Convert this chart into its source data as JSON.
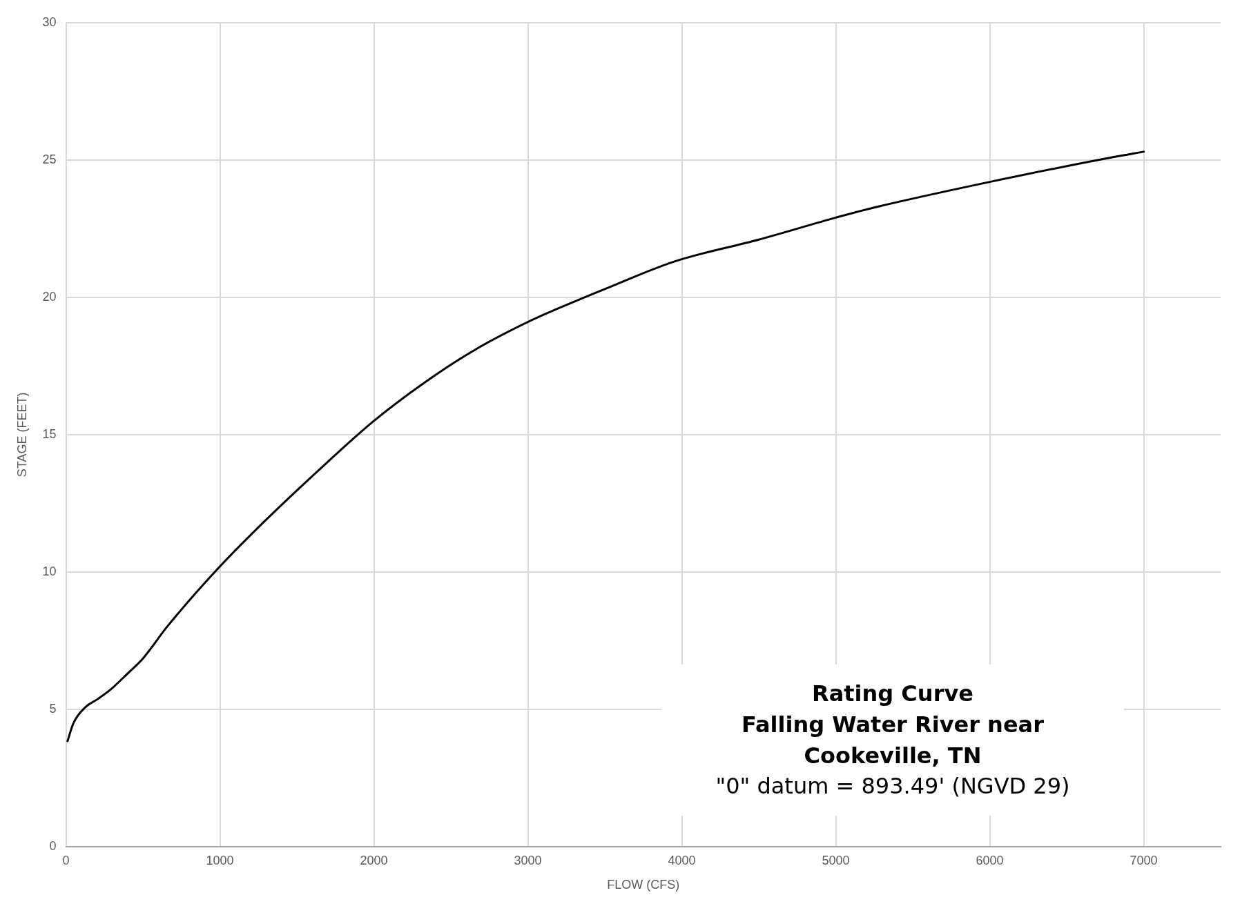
{
  "chart_data": {
    "type": "line",
    "title": "Rating Curve\nFalling Water River near\nCookeville, TN",
    "subtitle": "\"0\" datum = 893.49' (NGVD 29)",
    "xlabel": "FLOW (CFS)",
    "ylabel": "STAGE (FEET)",
    "x": [
      10,
      48,
      127,
      200,
      286,
      400,
      500,
      656,
      1000,
      1300,
      1660,
      2000,
      2330,
      2660,
      3000,
      3200,
      3500,
      3950,
      4500,
      5000,
      5200,
      6000,
      6800,
      7000
    ],
    "series": [
      {
        "color": "#000000",
        "values": [
          3.84,
          4.49,
          5.08,
          5.35,
          5.7,
          6.3,
          6.85,
          8.0,
          10.2,
          11.9,
          13.8,
          15.5,
          16.9,
          18.1,
          19.1,
          19.6,
          20.3,
          21.3,
          22.1,
          22.9,
          23.2,
          24.2,
          25.1,
          25.3
        ]
      }
    ],
    "xlim": [
      0,
      7500
    ],
    "xticks": [
      0,
      1000,
      2000,
      3000,
      4000,
      5000,
      6000,
      7000
    ],
    "ylim": [
      0,
      30
    ],
    "yticks": [
      0,
      5,
      10,
      15,
      20,
      25,
      30
    ],
    "grid": true,
    "legend": false,
    "marker": "none",
    "line_style": "solid"
  }
}
